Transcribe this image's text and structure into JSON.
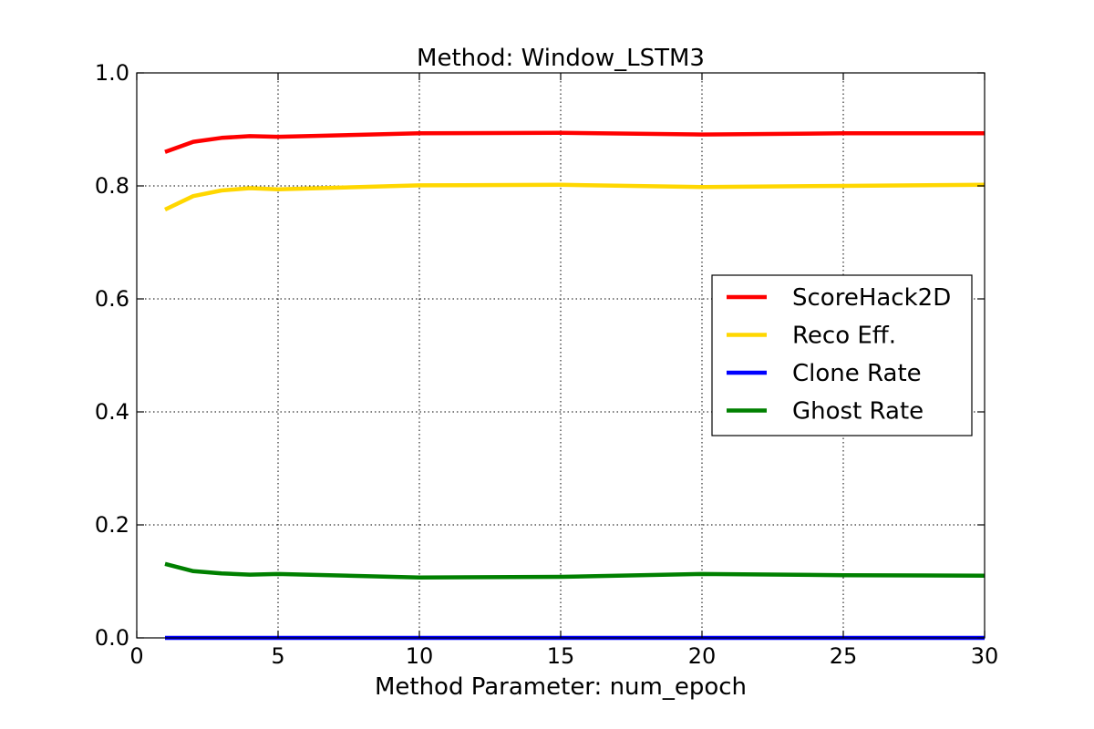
{
  "chart_data": {
    "type": "line",
    "title": "Method: Window_LSTM3",
    "xlabel": "Method Parameter: num_epoch",
    "ylabel": "",
    "xlim": [
      0,
      30
    ],
    "ylim": [
      0.0,
      1.0
    ],
    "x_ticks": [
      0,
      5,
      10,
      15,
      20,
      25,
      30
    ],
    "x_tick_labels": [
      "0",
      "5",
      "10",
      "15",
      "20",
      "25",
      "30"
    ],
    "y_ticks": [
      0.0,
      0.2,
      0.4,
      0.6,
      0.8,
      1.0
    ],
    "y_tick_labels": [
      "0.0",
      "0.2",
      "0.4",
      "0.6",
      "0.8",
      "1.0"
    ],
    "grid": true,
    "legend_position": "right",
    "x": [
      1,
      2,
      3,
      4,
      5,
      10,
      15,
      20,
      25,
      30
    ],
    "series": [
      {
        "name": "ScoreHack2D",
        "color": "#ff0000",
        "values": [
          0.86,
          0.878,
          0.885,
          0.888,
          0.887,
          0.893,
          0.894,
          0.891,
          0.893,
          0.893
        ]
      },
      {
        "name": "Reco Eff.",
        "color": "#ffd700",
        "values": [
          0.758,
          0.782,
          0.792,
          0.796,
          0.794,
          0.801,
          0.802,
          0.798,
          0.8,
          0.802
        ]
      },
      {
        "name": "Clone Rate",
        "color": "#0000ff",
        "values": [
          0.0,
          0.0,
          0.0,
          0.0,
          0.0,
          0.0,
          0.0,
          0.0,
          0.0,
          0.0
        ]
      },
      {
        "name": "Ghost Rate",
        "color": "#008000",
        "values": [
          0.131,
          0.118,
          0.114,
          0.112,
          0.113,
          0.107,
          0.108,
          0.113,
          0.111,
          0.11
        ]
      }
    ]
  }
}
